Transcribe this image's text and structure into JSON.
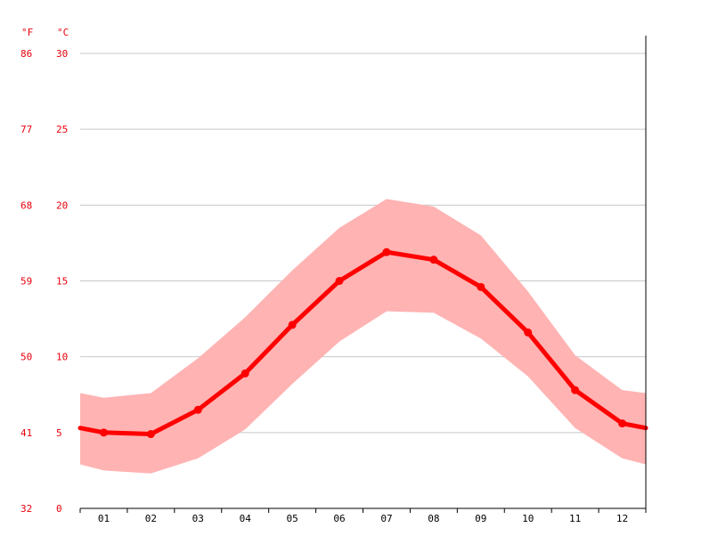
{
  "chart_data": {
    "type": "line",
    "title": "",
    "xlabel": "",
    "ylabel": "",
    "unit_left_outer": "°F",
    "unit_left_inner": "°C",
    "categories": [
      "01",
      "02",
      "03",
      "04",
      "05",
      "06",
      "07",
      "08",
      "09",
      "10",
      "11",
      "12"
    ],
    "fahrenheit_ticks": [
      "32",
      "41",
      "50",
      "59",
      "68",
      "77",
      "86"
    ],
    "celsius_ticks": [
      "0",
      "5",
      "10",
      "15",
      "20",
      "25",
      "30"
    ],
    "ylim": [
      0,
      30
    ],
    "grid": true,
    "series": [
      {
        "values": [
          5.0,
          4.9,
          6.5,
          8.9,
          12.1,
          15.0,
          16.9,
          16.4,
          14.6,
          11.6,
          7.8,
          5.6
        ]
      }
    ],
    "band_upper": [
      7.3,
      7.6,
      9.9,
      12.6,
      15.7,
      18.5,
      20.4,
      19.9,
      18.0,
      14.3,
      10.1,
      7.8
    ],
    "band_lower": [
      2.5,
      2.3,
      3.3,
      5.2,
      8.2,
      11.0,
      13.0,
      12.9,
      11.2,
      8.7,
      5.3,
      3.3
    ],
    "edge_left": {
      "value": 5.3,
      "upper": 7.6,
      "lower": 2.9
    },
    "edge_right": {
      "value": 5.3,
      "upper": 7.6,
      "lower": 2.9
    },
    "colors": {
      "line": "#ff0000",
      "band": "#ffb3b3",
      "axis_text": "#e8000b"
    }
  }
}
